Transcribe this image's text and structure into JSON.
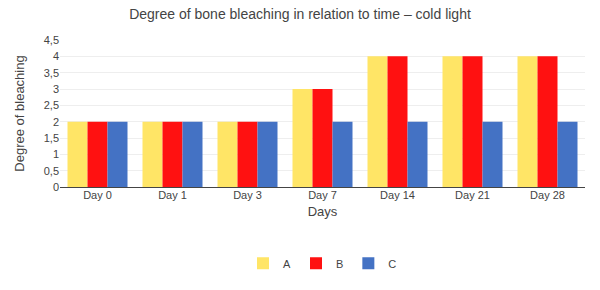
{
  "chart_data": {
    "type": "bar",
    "title": "Degree of bone bleaching in relation to time – cold light",
    "xlabel": "Days",
    "ylabel": "Degree of bleaching",
    "categories": [
      "Day 0",
      "Day 1",
      "Day 3",
      "Day 7",
      "Day 14",
      "Day 21",
      "Day 28"
    ],
    "series": [
      {
        "name": "A",
        "color": "#FFE566",
        "values": [
          2,
          2,
          2,
          3,
          4,
          4,
          4
        ]
      },
      {
        "name": "B",
        "color": "#FF1111",
        "values": [
          2,
          2,
          2,
          3,
          4,
          4,
          4
        ]
      },
      {
        "name": "C",
        "color": "#4472C4",
        "values": [
          2,
          2,
          2,
          2,
          2,
          2,
          2
        ]
      }
    ],
    "ylim": [
      0,
      4.5
    ],
    "yticks": [
      0,
      {
        "value": 0.5,
        "label": "0,5"
      },
      1,
      {
        "value": 1.5,
        "label": "1,5"
      },
      2,
      {
        "value": 2.5,
        "label": "2,5"
      },
      3,
      {
        "value": 3.5,
        "label": "3,5"
      },
      4,
      {
        "value": 4.5,
        "label": "4,5"
      }
    ],
    "grid": true,
    "legend": "bottom"
  }
}
